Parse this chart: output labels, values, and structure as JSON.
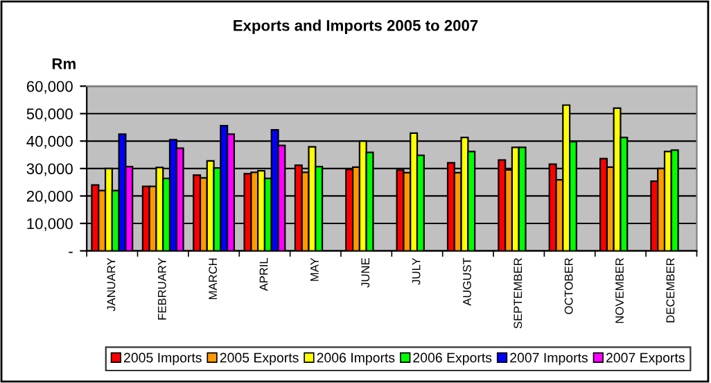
{
  "chart_data": {
    "type": "bar",
    "title": "Exports and Imports 2005 to 2007",
    "ylabel": "Rm",
    "categories": [
      "JANUARY",
      "FEBRUARY",
      "MARCH",
      "APRIL",
      "MAY",
      "JUNE",
      "JULY",
      "AUGUST",
      "SEPTEMBER",
      "OCTOBER",
      "NOVEMBER",
      "DECEMBER"
    ],
    "series": [
      {
        "name": "2005 Imports",
        "color": "#ff0000",
        "values": [
          24000,
          23500,
          27600,
          28100,
          31200,
          29700,
          29400,
          32100,
          33100,
          31600,
          33600,
          25400
        ]
      },
      {
        "name": "2005 Exports",
        "color": "#ff9900",
        "values": [
          22000,
          23500,
          26600,
          28600,
          28600,
          30500,
          28500,
          28500,
          29500,
          25900,
          30500,
          30000
        ]
      },
      {
        "name": "2006 Imports",
        "color": "#ffff00",
        "values": [
          30000,
          30400,
          32800,
          29200,
          37900,
          40000,
          42900,
          41300,
          37700,
          53100,
          52000,
          36200
        ]
      },
      {
        "name": "2006 Exports",
        "color": "#00ff00",
        "values": [
          22000,
          26400,
          30200,
          26400,
          30700,
          35900,
          34800,
          36200,
          37700,
          39800,
          41300,
          36700
        ]
      },
      {
        "name": "2007 Imports",
        "color": "#0000ff",
        "values": [
          42500,
          40500,
          45600,
          44100,
          null,
          null,
          null,
          null,
          null,
          null,
          null,
          null
        ]
      },
      {
        "name": "2007 Exports",
        "color": "#ff00ff",
        "values": [
          30700,
          37400,
          42500,
          38400,
          null,
          null,
          null,
          null,
          null,
          null,
          null,
          null
        ]
      }
    ],
    "ylim": [
      0,
      60000
    ],
    "yticks": [
      {
        "value": 0,
        "label": "-"
      },
      {
        "value": 10000,
        "label": "10,000"
      },
      {
        "value": 20000,
        "label": "20,000"
      },
      {
        "value": 30000,
        "label": "30,000"
      },
      {
        "value": 40000,
        "label": "40,000"
      },
      {
        "value": 50000,
        "label": "50,000"
      },
      {
        "value": 60000,
        "label": "60,000"
      }
    ],
    "grid": "y",
    "legend": "bottom"
  }
}
